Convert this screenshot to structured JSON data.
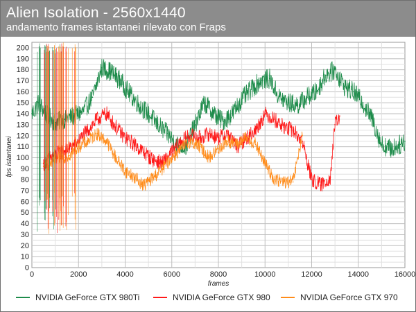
{
  "header": {
    "title": "Alien Isolation - 2560x1440",
    "subtitle": "andamento frames istantanei rilevato con Fraps"
  },
  "chart_data": {
    "type": "line",
    "title": "Alien Isolation - 2560x1440",
    "subtitle": "andamento frames istantanei rilevato con Fraps",
    "xlabel": "frames",
    "ylabel": "fps istantanei",
    "xlim": [
      0,
      16000
    ],
    "ylim": [
      0,
      205
    ],
    "x_ticks": [
      0,
      2000,
      4000,
      6000,
      8000,
      10000,
      12000,
      14000,
      16000
    ],
    "y_ticks": [
      0,
      10,
      20,
      30,
      40,
      50,
      60,
      70,
      80,
      90,
      100,
      110,
      120,
      130,
      140,
      150,
      160,
      170,
      180,
      190,
      200
    ],
    "grid": true,
    "legend_position": "bottom",
    "series": [
      {
        "name": "NVIDIA GeForce GTX 980Ti",
        "color": "#1e8c4b",
        "x": [
          0,
          300,
          600,
          1000,
          1400,
          1800,
          2200,
          2600,
          3000,
          3400,
          3800,
          4200,
          4600,
          5000,
          5400,
          5800,
          6200,
          6600,
          7000,
          7400,
          7800,
          8200,
          8600,
          9000,
          9400,
          9800,
          10200,
          10600,
          11000,
          11400,
          11800,
          12200,
          12600,
          13000,
          13400,
          13800,
          14200,
          14600,
          15000,
          15400,
          15800,
          16000
        ],
        "values": [
          140,
          150,
          140,
          132,
          135,
          138,
          142,
          155,
          182,
          178,
          170,
          158,
          148,
          140,
          130,
          122,
          112,
          110,
          130,
          150,
          140,
          133,
          140,
          153,
          162,
          170,
          172,
          155,
          150,
          148,
          155,
          160,
          175,
          180,
          165,
          160,
          150,
          135,
          112,
          108,
          112,
          115
        ]
      },
      {
        "name": "NVIDIA GeForce GTX 980",
        "color": "#ff1a1a",
        "x": [
          500,
          800,
          1200,
          1600,
          2000,
          2400,
          2800,
          3200,
          3600,
          4000,
          4400,
          4800,
          5200,
          5600,
          6000,
          6400,
          6800,
          7200,
          7600,
          8000,
          8400,
          8800,
          9200,
          9600,
          10000,
          10400,
          10800,
          11200,
          11600,
          12000,
          12400,
          12800,
          13000,
          13200
        ],
        "values": [
          95,
          100,
          105,
          108,
          115,
          125,
          135,
          140,
          128,
          118,
          112,
          105,
          98,
          95,
          105,
          115,
          120,
          118,
          122,
          118,
          122,
          110,
          118,
          125,
          140,
          135,
          128,
          125,
          115,
          80,
          75,
          82,
          130,
          138
        ]
      },
      {
        "name": "NVIDIA GeForce GTX 970",
        "color": "#ff8c1a",
        "x": [
          500,
          800,
          1200,
          1600,
          2000,
          2400,
          2800,
          3200,
          3600,
          4000,
          4400,
          4800,
          5200,
          5600,
          6000,
          6400,
          6800,
          7200,
          7600,
          8000,
          8400,
          8800,
          9200,
          9600,
          10000,
          10400,
          10800,
          11200,
          11600
        ],
        "values": [
          92,
          95,
          100,
          102,
          110,
          115,
          122,
          115,
          100,
          88,
          82,
          75,
          82,
          90,
          100,
          108,
          115,
          110,
          100,
          108,
          115,
          112,
          118,
          112,
          95,
          80,
          78,
          78,
          120
        ]
      }
    ]
  }
}
